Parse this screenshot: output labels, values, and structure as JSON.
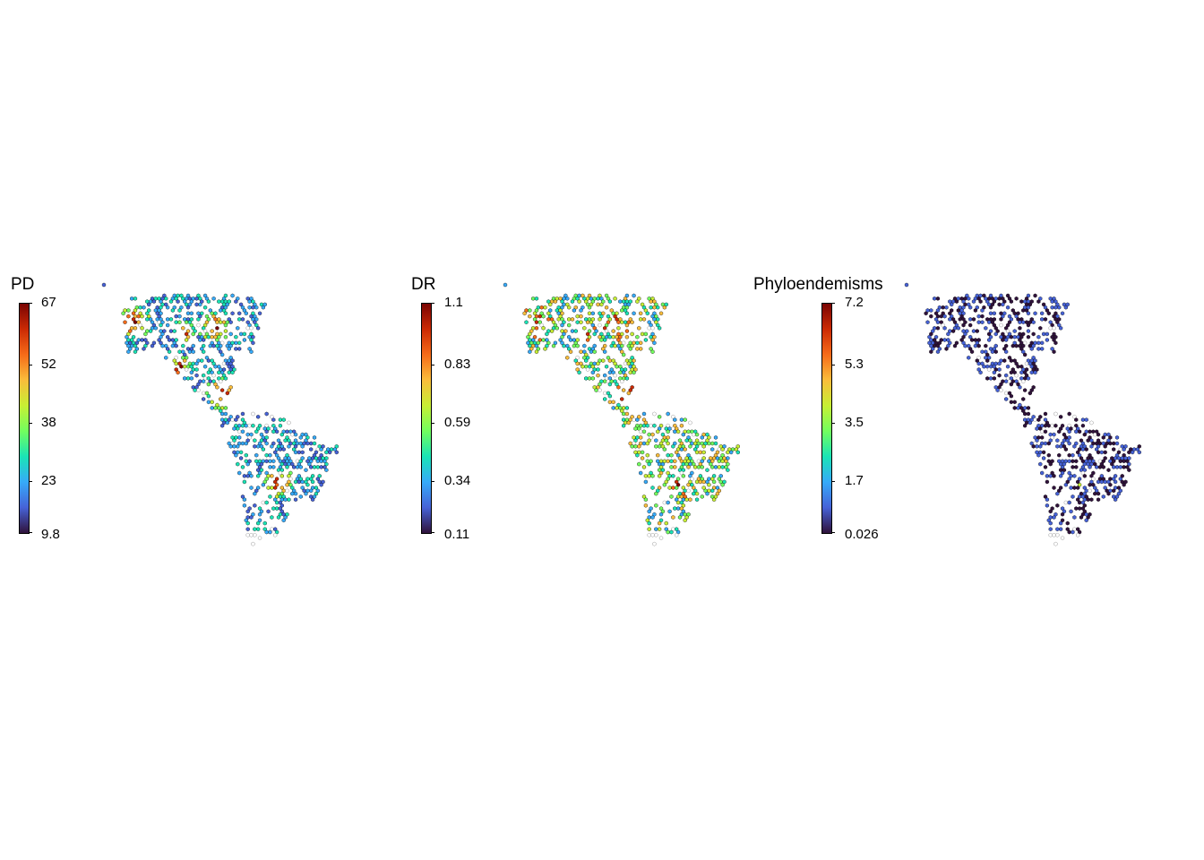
{
  "figure": {
    "palette": [
      "#30123b",
      "#4662d7",
      "#36aaf9",
      "#1ae4b6",
      "#72fe5e",
      "#c7ef34",
      "#fabd3b",
      "#f66b19",
      "#cb2a04",
      "#7a0403"
    ],
    "empty_cell_color": "#ffffff",
    "cell_outline_color": "#000000",
    "panels": [
      {
        "id": "pd",
        "legend": {
          "title": "PD",
          "min": 9.8,
          "max": 67,
          "ticks": [
            "67",
            "52",
            "38",
            "23",
            "9.8"
          ]
        },
        "map": {
          "layer": "PD",
          "highlight": "hotspots"
        }
      },
      {
        "id": "dr",
        "legend": {
          "title": "DR",
          "min": 0.11,
          "max": 1.1,
          "ticks": [
            "1.1",
            "0.83",
            "0.59",
            "0.34",
            "0.11"
          ]
        },
        "map": {
          "layer": "DR",
          "highlight": "varied"
        }
      },
      {
        "id": "phyloendemisms",
        "legend": {
          "title": "Phyloendemisms",
          "min": 0.026,
          "max": 7.2,
          "ticks": [
            "7.2",
            "5.3",
            "3.5",
            "1.7",
            "0.026"
          ]
        },
        "map": {
          "layer": "Phyloendemisms",
          "highlight": "low"
        }
      }
    ]
  }
}
